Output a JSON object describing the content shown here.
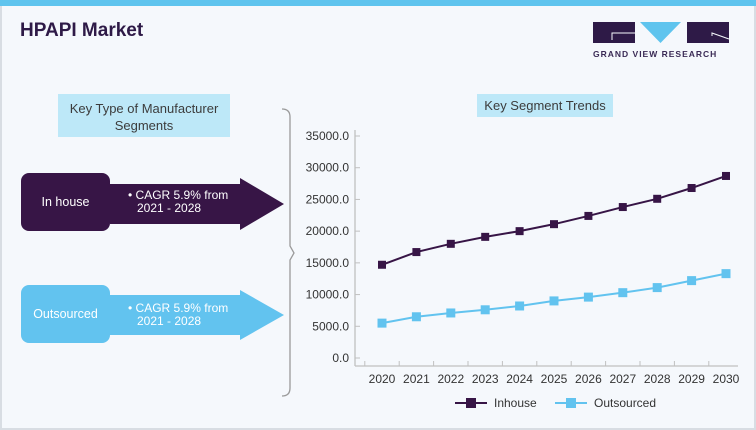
{
  "header": {
    "title": "HPAPI Market",
    "logo_text": "GRAND VIEW RESEARCH"
  },
  "left_panel": {
    "heading": "Key Type of Manufacturer Segments",
    "segments": [
      {
        "name": "In house",
        "cagr_text": "CAGR 5.9% from",
        "period_text": "2021 - 2028",
        "color": "#371546"
      },
      {
        "name": "Outsourced",
        "cagr_text": "CAGR 5.9% from",
        "period_text": "2021 - 2028",
        "color": "#62c3ef"
      }
    ]
  },
  "colors": {
    "accent_bar": "#5fc4ee",
    "inhouse": "#371546",
    "outsourced": "#62c3ef",
    "label_bg": "#bde8f8"
  },
  "chart_data": {
    "type": "line",
    "title": "Key Segment Trends",
    "xlabel": "",
    "ylabel": "",
    "x": [
      "2020",
      "2021",
      "2022",
      "2023",
      "2024",
      "2025",
      "2026",
      "2027",
      "2028",
      "2029",
      "2030"
    ],
    "y_ticks": [
      "0.0",
      "5000.0",
      "10000.0",
      "15000.0",
      "20000.0",
      "25000.0",
      "30000.0",
      "35000.0"
    ],
    "ylim": [
      0,
      35000
    ],
    "grid": false,
    "legend": "bottom",
    "series": [
      {
        "name": "Inhouse",
        "color": "#371546",
        "marker": "square",
        "values": [
          14700,
          16700,
          18000,
          19100,
          20000,
          21100,
          22400,
          23800,
          25100,
          26800,
          28700
        ]
      },
      {
        "name": "Outsourced",
        "color": "#62c3ef",
        "marker": "square",
        "values": [
          5500,
          6500,
          7100,
          7600,
          8200,
          9000,
          9600,
          10300,
          11100,
          12200,
          13300
        ]
      }
    ]
  }
}
